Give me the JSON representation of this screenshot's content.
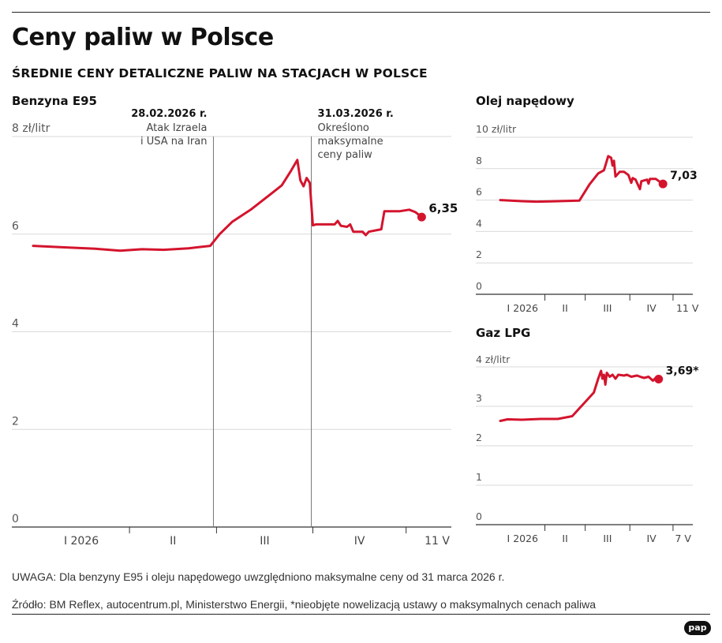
{
  "header": {
    "title": "Ceny paliw w Polsce",
    "subtitle": "ŚREDNIE CENY DETALICZNE PALIW NA STACJACH W POLSCE"
  },
  "footer": {
    "note": "UWAGA: Dla benzyny E95 i oleju napędowego uwzględniono maksymalne ceny od 31 marca 2026 r.",
    "source": "Źródło: BM Reflex, autocentrum.pl, Ministerstwo Energii, *nieobjęte nowelizacją ustawy o maksymalnych cenach paliwa",
    "logo": "pap"
  },
  "colors": {
    "line": "#d4142d",
    "grid": "#d9d9d9",
    "axis": "#333333"
  },
  "chart_data": [
    {
      "id": "e95",
      "type": "line",
      "title": "Benzyna E95",
      "unit_label": "8 zł/litr",
      "ylim": [
        0,
        8
      ],
      "yticks": [
        "0",
        "2",
        "4",
        "6"
      ],
      "xlim": [
        0,
        131
      ],
      "month_ticks": [
        31,
        59,
        90,
        120
      ],
      "xlabels": [
        {
          "x": 15.5,
          "text": "I 2026"
        },
        {
          "x": 45,
          "text": "II"
        },
        {
          "x": 74.5,
          "text": "III"
        },
        {
          "x": 105,
          "text": "IV"
        },
        {
          "x": 130,
          "text": "11 V"
        }
      ],
      "annotations": [
        {
          "x": 58,
          "date": "28.02.2026 r.",
          "text": [
            "Atak Izraela",
            "i USA na Iran"
          ],
          "align": "end"
        },
        {
          "x": 89.5,
          "date": "31.03.2026 r.",
          "text": [
            "Określono",
            "maksymalne",
            "ceny paliw"
          ],
          "align": "start"
        }
      ],
      "last_label": "6,35",
      "points": [
        [
          0,
          5.76
        ],
        [
          10,
          5.73
        ],
        [
          20,
          5.7
        ],
        [
          28,
          5.66
        ],
        [
          35,
          5.69
        ],
        [
          42,
          5.68
        ],
        [
          50,
          5.71
        ],
        [
          57,
          5.76
        ],
        [
          60,
          6.0
        ],
        [
          64,
          6.25
        ],
        [
          70,
          6.5
        ],
        [
          76,
          6.8
        ],
        [
          80,
          7.0
        ],
        [
          83,
          7.3
        ],
        [
          85,
          7.52
        ],
        [
          86,
          7.1
        ],
        [
          87,
          6.98
        ],
        [
          88,
          7.15
        ],
        [
          89,
          7.05
        ],
        [
          90,
          6.18
        ],
        [
          91,
          6.2
        ],
        [
          97,
          6.2
        ],
        [
          98,
          6.27
        ],
        [
          99,
          6.17
        ],
        [
          101,
          6.15
        ],
        [
          102,
          6.2
        ],
        [
          103,
          6.05
        ],
        [
          106,
          6.05
        ],
        [
          107,
          5.98
        ],
        [
          108,
          6.05
        ],
        [
          112,
          6.1
        ],
        [
          113,
          6.47
        ],
        [
          118,
          6.47
        ],
        [
          121,
          6.5
        ],
        [
          123,
          6.45
        ],
        [
          125,
          6.35
        ]
      ]
    },
    {
      "id": "on",
      "type": "line",
      "title": "Olej napędowy",
      "unit_label": "10 zł/litr",
      "ylim": [
        0,
        10
      ],
      "yticks": [
        "0",
        "2",
        "4",
        "6",
        "8"
      ],
      "xlim": [
        0,
        131
      ],
      "month_ticks": [
        31,
        59,
        90,
        120
      ],
      "xlabels": [
        {
          "x": 15.5,
          "text": "I 2026"
        },
        {
          "x": 45,
          "text": "II"
        },
        {
          "x": 74.5,
          "text": "III"
        },
        {
          "x": 105,
          "text": "IV"
        },
        {
          "x": 130,
          "text": "11 V"
        }
      ],
      "last_label": "7,03",
      "points": [
        [
          0,
          6.0
        ],
        [
          15,
          5.93
        ],
        [
          25,
          5.9
        ],
        [
          35,
          5.92
        ],
        [
          45,
          5.94
        ],
        [
          55,
          5.97
        ],
        [
          62,
          7.0
        ],
        [
          68,
          7.7
        ],
        [
          72,
          7.9
        ],
        [
          75,
          8.8
        ],
        [
          77,
          8.7
        ],
        [
          78,
          8.2
        ],
        [
          79,
          8.5
        ],
        [
          80,
          7.5
        ],
        [
          83,
          7.8
        ],
        [
          86,
          7.8
        ],
        [
          89,
          7.6
        ],
        [
          91,
          7.1
        ],
        [
          92,
          7.4
        ],
        [
          94,
          7.3
        ],
        [
          97,
          6.7
        ],
        [
          98,
          7.2
        ],
        [
          102,
          7.3
        ],
        [
          103,
          7.05
        ],
        [
          104,
          7.35
        ],
        [
          108,
          7.35
        ],
        [
          111,
          7.15
        ],
        [
          113,
          7.03
        ]
      ]
    },
    {
      "id": "lpg",
      "type": "line",
      "title": "Gaz LPG",
      "unit_label": "4 zł/litr",
      "ylim": [
        0,
        4
      ],
      "yticks": [
        "0",
        "1",
        "2",
        "3"
      ],
      "xlim": [
        0,
        131
      ],
      "month_ticks": [
        31,
        59,
        90,
        120
      ],
      "xlabels": [
        {
          "x": 15.5,
          "text": "I 2026"
        },
        {
          "x": 45,
          "text": "II"
        },
        {
          "x": 74.5,
          "text": "III"
        },
        {
          "x": 105,
          "text": "IV"
        },
        {
          "x": 127,
          "text": "7 V"
        }
      ],
      "last_label": "3,69*",
      "points": [
        [
          0,
          2.63
        ],
        [
          5,
          2.67
        ],
        [
          15,
          2.66
        ],
        [
          28,
          2.68
        ],
        [
          40,
          2.68
        ],
        [
          50,
          2.75
        ],
        [
          55,
          2.95
        ],
        [
          60,
          3.15
        ],
        [
          65,
          3.35
        ],
        [
          68,
          3.7
        ],
        [
          70,
          3.9
        ],
        [
          71,
          3.7
        ],
        [
          72,
          3.8
        ],
        [
          73,
          3.55
        ],
        [
          74,
          3.85
        ],
        [
          76,
          3.75
        ],
        [
          78,
          3.8
        ],
        [
          80,
          3.7
        ],
        [
          82,
          3.8
        ],
        [
          86,
          3.78
        ],
        [
          88,
          3.8
        ],
        [
          91,
          3.75
        ],
        [
          95,
          3.78
        ],
        [
          98,
          3.74
        ],
        [
          100,
          3.72
        ],
        [
          103,
          3.75
        ],
        [
          106,
          3.65
        ],
        [
          108,
          3.72
        ],
        [
          110,
          3.69
        ]
      ]
    }
  ]
}
